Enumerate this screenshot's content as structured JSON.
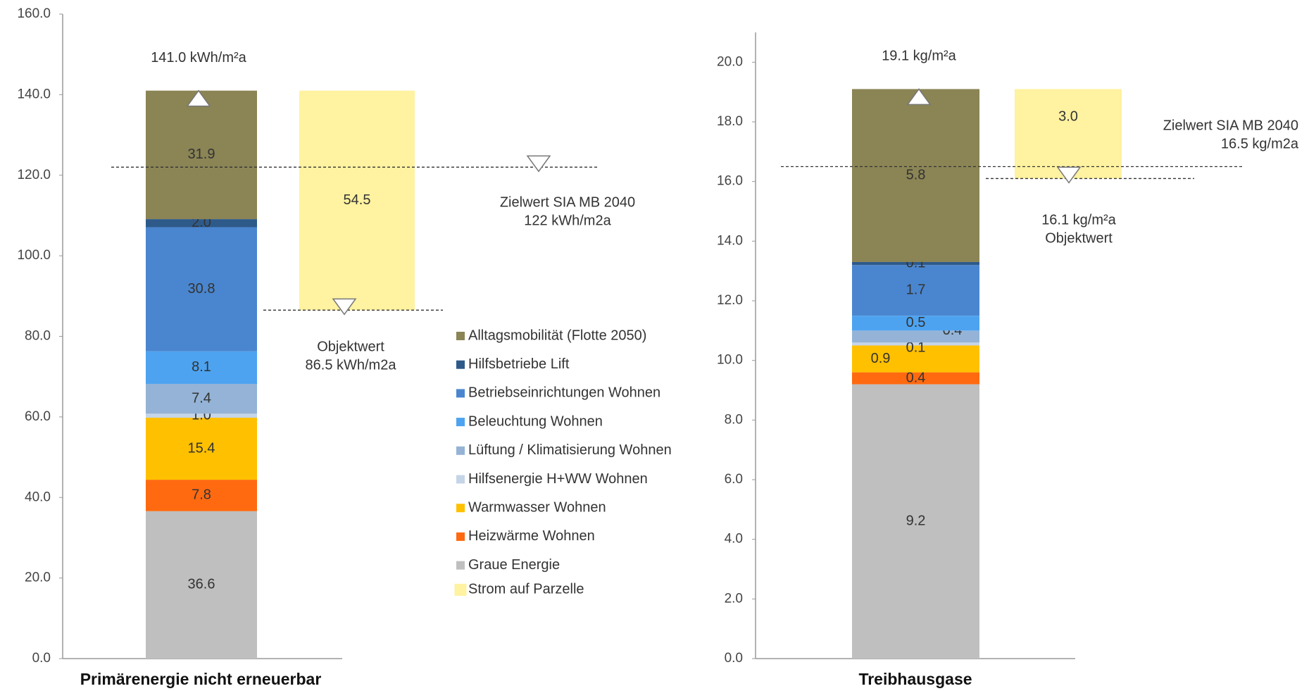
{
  "chart_data": [
    {
      "type": "stacked-bar",
      "x_label": "Primärenergie nicht erneuerbar",
      "ylim": [
        0,
        160
      ],
      "yticks": [
        {
          "value": 0,
          "label": "0.0"
        },
        {
          "value": 20,
          "label": "20.0"
        },
        {
          "value": 40,
          "label": "40.0"
        },
        {
          "value": 60,
          "label": "60.0"
        },
        {
          "value": 80,
          "label": "80.0"
        },
        {
          "value": 100,
          "label": "100.0"
        },
        {
          "value": 120,
          "label": "120.0"
        },
        {
          "value": 140,
          "label": "140.0"
        },
        {
          "value": 160,
          "label": "160.0"
        }
      ],
      "legend": true,
      "series": [
        {
          "name": "Graue Energie",
          "color": "#bfbfbf",
          "values": [
            36.6
          ],
          "value_labels": [
            "36.6"
          ]
        },
        {
          "name": "Heizwärme Wohnen",
          "color": "#ff6a10",
          "values": [
            7.8
          ],
          "value_labels": [
            "7.8"
          ]
        },
        {
          "name": "Warmwasser Wohnen",
          "color": "#ffc000",
          "values": [
            15.4
          ],
          "value_labels": [
            "15.4"
          ]
        },
        {
          "name": "Hilfsenergie H+WW Wohnen",
          "color": "#c5d5e8",
          "values": [
            1.0
          ],
          "value_labels": [
            "1.0"
          ]
        },
        {
          "name": "Lüftung / Klimatisierung Wohnen",
          "color": "#94b3d6",
          "values": [
            7.4
          ],
          "value_labels": [
            "7.4"
          ]
        },
        {
          "name": "Beleuchtung Wohnen",
          "color": "#4da3f0",
          "values": [
            8.1
          ],
          "value_labels": [
            "8.1"
          ]
        },
        {
          "name": "Betriebseinrichtungen Wohnen",
          "color": "#4a86cf",
          "values": [
            30.8
          ],
          "value_labels": [
            "30.8"
          ]
        },
        {
          "name": "Hilfsbetriebe Lift",
          "color": "#2e5a8a",
          "values": [
            2.0
          ],
          "value_labels": [
            "2.0"
          ]
        },
        {
          "name": "Alltagsmobilität (Flotte 2050)",
          "color": "#8b8455",
          "values": [
            31.9
          ],
          "value_labels": [
            "31.9"
          ]
        }
      ],
      "strom": {
        "name": "Strom auf Parzelle",
        "color": "#fff2a0",
        "value": 54.5,
        "value_label": "54.5"
      },
      "total": {
        "value": 141.0,
        "label": "141.0 kWh/m²a"
      },
      "target": {
        "value": 122,
        "label": [
          "Zielwert SIA MB 2040",
          "122 kWh/m2a"
        ]
      },
      "objective": {
        "value": 86.5,
        "label": [
          "Objektwert",
          "86.5 kWh/m2a"
        ]
      }
    },
    {
      "type": "stacked-bar",
      "x_label": "Treibhausgase",
      "ylim": [
        0,
        21
      ],
      "yticks": [
        {
          "value": 0,
          "label": "0.0"
        },
        {
          "value": 2,
          "label": "2.0"
        },
        {
          "value": 4,
          "label": "4.0"
        },
        {
          "value": 6,
          "label": "6.0"
        },
        {
          "value": 8,
          "label": "8.0"
        },
        {
          "value": 10,
          "label": "10.0"
        },
        {
          "value": 12,
          "label": "12.0"
        },
        {
          "value": 14,
          "label": "14.0"
        },
        {
          "value": 16,
          "label": "16.0"
        },
        {
          "value": 18,
          "label": "18.0"
        },
        {
          "value": 20,
          "label": "20.0"
        }
      ],
      "legend": false,
      "series": [
        {
          "color": "#bfbfbf",
          "values": [
            9.2
          ],
          "value_labels": [
            "9.2"
          ]
        },
        {
          "color": "#ff6a10",
          "values": [
            0.4
          ],
          "value_labels": [
            "0.4"
          ]
        },
        {
          "color": "#ffc000",
          "values": [
            0.9
          ],
          "value_labels": [
            "0.9"
          ]
        },
        {
          "color": "#c5d5e8",
          "values": [
            0.1
          ],
          "value_labels": [
            "0.1"
          ]
        },
        {
          "color": "#94b3d6",
          "values": [
            0.4
          ],
          "value_labels": [
            "0.4"
          ]
        },
        {
          "color": "#4da3f0",
          "values": [
            0.5
          ],
          "value_labels": [
            "0.5"
          ]
        },
        {
          "color": "#4a86cf",
          "values": [
            1.7
          ],
          "value_labels": [
            "1.7"
          ]
        },
        {
          "color": "#2e5a8a",
          "values": [
            0.1
          ],
          "value_labels": [
            "0.1"
          ]
        },
        {
          "color": "#8b8455",
          "values": [
            5.8
          ],
          "value_labels": [
            "5.8"
          ]
        }
      ],
      "strom": {
        "color": "#fff2a0",
        "value": 3.0,
        "value_label": "3.0"
      },
      "total": {
        "value": 19.1,
        "label": "19.1 kg/m²a"
      },
      "target": {
        "value": 16.5,
        "label": [
          "Zielwert SIA MB 2040",
          "16.5 kg/m2a"
        ]
      },
      "objective": {
        "value": 16.1,
        "label": [
          "16.1 kg/m²a",
          "Objektwert"
        ]
      }
    }
  ]
}
